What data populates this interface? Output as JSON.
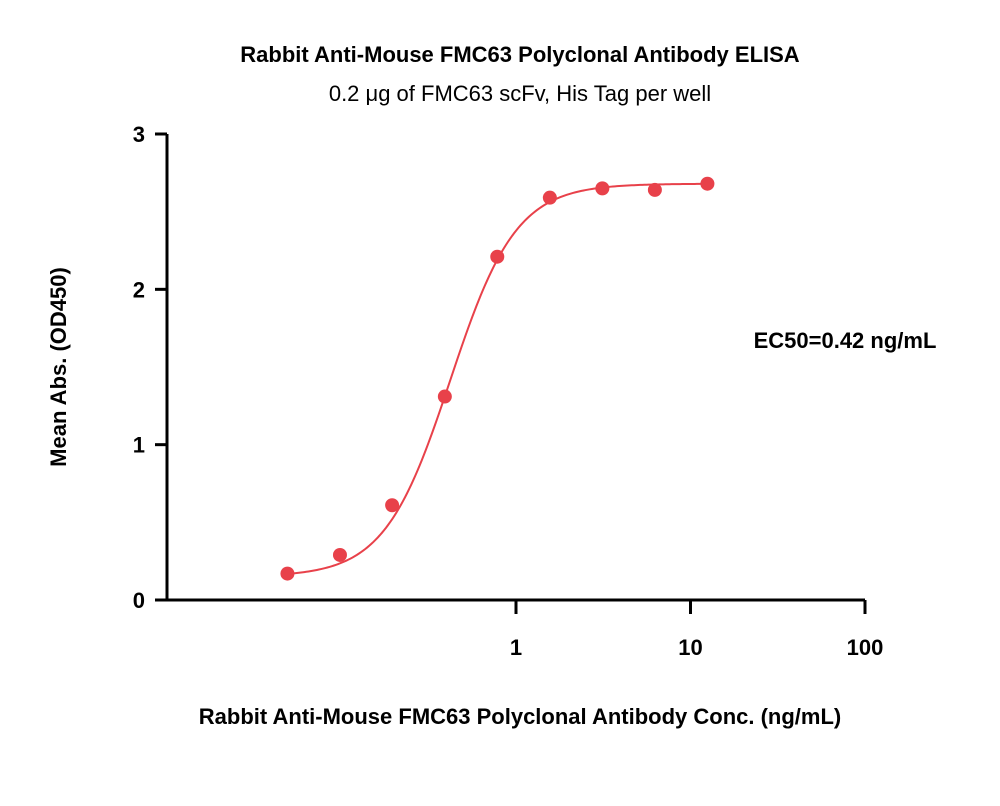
{
  "chart_data": {
    "type": "scatter",
    "title": "Rabbit Anti-Mouse FMC63 Polyclonal Antibody ELISA",
    "subtitle": "0.2 μg of FMC63 scFv, His Tag per well",
    "xlabel": "Rabbit Anti-Mouse FMC63 Polyclonal Antibody Conc. (ng/mL)",
    "ylabel": "Mean Abs. (OD450)",
    "x_scale": "log",
    "xlim": [
      0.01,
      100
    ],
    "ylim": [
      0,
      3
    ],
    "x_ticks": [
      {
        "value": 1,
        "label": "1"
      },
      {
        "value": 10,
        "label": "10"
      },
      {
        "value": 100,
        "label": "100"
      }
    ],
    "y_ticks": [
      {
        "value": 0,
        "label": "0"
      },
      {
        "value": 1,
        "label": "1"
      },
      {
        "value": 2,
        "label": "2"
      },
      {
        "value": 3,
        "label": "3"
      }
    ],
    "grid": false,
    "annotation": "EC50=0.42 ng/mL",
    "color": "#e8414a",
    "series": [
      {
        "x": [
          0.049,
          0.098,
          0.195,
          0.391,
          0.781,
          1.563,
          3.125,
          6.25,
          12.5
        ],
        "y": [
          0.17,
          0.29,
          0.61,
          1.31,
          2.21,
          2.59,
          2.65,
          2.64,
          2.68
        ]
      }
    ],
    "fit": {
      "model": "4PL",
      "bottom": 0.15,
      "top": 2.68,
      "ec50": 0.42,
      "hill": 2.3,
      "x_range": [
        0.049,
        12.5
      ]
    }
  }
}
